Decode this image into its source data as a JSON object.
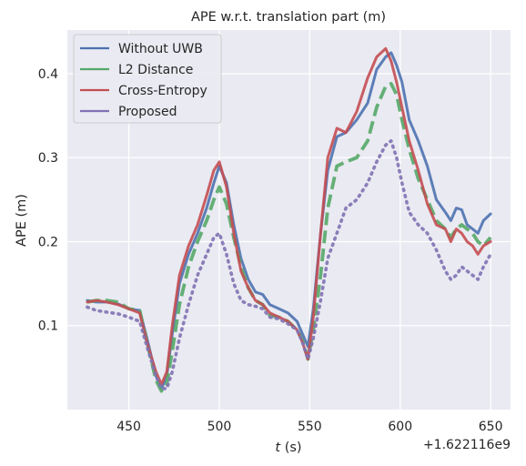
{
  "chart_data": {
    "type": "line",
    "title": "APE w.r.t. translation part (m)",
    "xlabel": "t (s)",
    "xlabel_italic_part": "t",
    "xlabel_rest": " (s)",
    "ylabel": "APE (m)",
    "x_offset_text": "+1.622116e9",
    "xlim": [
      416,
      661
    ],
    "ylim": [
      0.0,
      0.452
    ],
    "xticks": [
      450,
      500,
      550,
      600,
      650
    ],
    "xtick_labels": [
      "450",
      "500",
      "550",
      "600",
      "650"
    ],
    "yticks": [
      0.1,
      0.2,
      0.3,
      0.4
    ],
    "ytick_labels": [
      "0.1",
      "0.2",
      "0.3",
      "0.4"
    ],
    "grid": true,
    "legend_position": "upper-left",
    "background": "#eaeaf2",
    "series": [
      {
        "name": "Without UWB",
        "color": "#4c72b0",
        "style": "solid",
        "x": [
          427,
          432,
          438,
          444,
          450,
          456,
          460,
          465,
          468,
          471,
          474,
          478,
          483,
          488,
          493,
          497,
          500,
          504,
          508,
          512,
          516,
          520,
          524,
          528,
          533,
          538,
          543,
          546,
          549,
          552,
          556,
          560,
          565,
          570,
          576,
          582,
          587,
          592,
          595,
          598,
          601,
          605,
          610,
          615,
          620,
          625,
          628,
          631,
          634,
          637,
          640,
          643,
          646,
          650
        ],
        "y": [
          0.13,
          0.128,
          0.128,
          0.126,
          0.12,
          0.118,
          0.085,
          0.04,
          0.025,
          0.04,
          0.09,
          0.15,
          0.185,
          0.21,
          0.24,
          0.27,
          0.29,
          0.27,
          0.22,
          0.18,
          0.155,
          0.14,
          0.137,
          0.125,
          0.12,
          0.115,
          0.105,
          0.09,
          0.075,
          0.12,
          0.21,
          0.285,
          0.325,
          0.33,
          0.345,
          0.365,
          0.405,
          0.42,
          0.425,
          0.41,
          0.39,
          0.345,
          0.32,
          0.29,
          0.25,
          0.235,
          0.225,
          0.24,
          0.238,
          0.22,
          0.215,
          0.21,
          0.225,
          0.233
        ]
      },
      {
        "name": "L2 Distance",
        "color": "#55a868",
        "style": "dashed",
        "x": [
          427,
          432,
          438,
          444,
          450,
          456,
          460,
          465,
          468,
          471,
          474,
          478,
          483,
          488,
          493,
          497,
          500,
          504,
          508,
          512,
          516,
          520,
          524,
          528,
          533,
          538,
          543,
          546,
          549,
          552,
          556,
          560,
          565,
          570,
          576,
          582,
          587,
          592,
          595,
          598,
          601,
          605,
          610,
          615,
          620,
          625,
          628,
          631,
          634,
          637,
          640,
          643,
          646,
          650
        ],
        "y": [
          0.128,
          0.13,
          0.13,
          0.128,
          0.12,
          0.118,
          0.08,
          0.035,
          0.022,
          0.03,
          0.07,
          0.125,
          0.17,
          0.2,
          0.225,
          0.25,
          0.265,
          0.245,
          0.205,
          0.17,
          0.145,
          0.13,
          0.125,
          0.112,
          0.11,
          0.105,
          0.095,
          0.082,
          0.06,
          0.095,
          0.16,
          0.24,
          0.29,
          0.295,
          0.3,
          0.32,
          0.36,
          0.385,
          0.388,
          0.375,
          0.345,
          0.31,
          0.275,
          0.25,
          0.225,
          0.215,
          0.205,
          0.215,
          0.22,
          0.215,
          0.21,
          0.2,
          0.195,
          0.205
        ]
      },
      {
        "name": "Cross-Entropy",
        "color": "#c44e52",
        "style": "solid",
        "x": [
          427,
          432,
          438,
          444,
          450,
          456,
          460,
          465,
          468,
          471,
          474,
          478,
          483,
          488,
          493,
          497,
          500,
          504,
          508,
          512,
          516,
          520,
          524,
          528,
          533,
          538,
          543,
          546,
          549,
          552,
          556,
          560,
          565,
          570,
          576,
          582,
          587,
          592,
          595,
          598,
          601,
          605,
          610,
          615,
          620,
          625,
          628,
          631,
          634,
          637,
          640,
          643,
          646,
          650
        ],
        "y": [
          0.128,
          0.13,
          0.128,
          0.125,
          0.12,
          0.115,
          0.08,
          0.045,
          0.03,
          0.045,
          0.1,
          0.16,
          0.195,
          0.22,
          0.255,
          0.285,
          0.295,
          0.265,
          0.21,
          0.165,
          0.145,
          0.13,
          0.125,
          0.115,
          0.11,
          0.105,
          0.095,
          0.08,
          0.06,
          0.11,
          0.21,
          0.3,
          0.335,
          0.33,
          0.355,
          0.395,
          0.42,
          0.43,
          0.415,
          0.39,
          0.36,
          0.32,
          0.285,
          0.245,
          0.22,
          0.215,
          0.2,
          0.215,
          0.21,
          0.2,
          0.195,
          0.185,
          0.195,
          0.2
        ]
      },
      {
        "name": "Proposed",
        "color": "#8172b3",
        "style": "dotted",
        "x": [
          427,
          432,
          438,
          444,
          450,
          456,
          460,
          465,
          468,
          471,
          474,
          478,
          483,
          488,
          493,
          497,
          500,
          504,
          508,
          512,
          516,
          520,
          524,
          528,
          533,
          538,
          543,
          546,
          549,
          552,
          556,
          560,
          565,
          570,
          576,
          582,
          587,
          592,
          595,
          598,
          601,
          605,
          610,
          615,
          620,
          625,
          628,
          631,
          634,
          637,
          640,
          643,
          646,
          650
        ],
        "y": [
          0.122,
          0.118,
          0.116,
          0.114,
          0.11,
          0.105,
          0.075,
          0.04,
          0.025,
          0.025,
          0.045,
          0.085,
          0.125,
          0.16,
          0.185,
          0.205,
          0.21,
          0.185,
          0.15,
          0.13,
          0.125,
          0.123,
          0.12,
          0.11,
          0.108,
          0.102,
          0.095,
          0.08,
          0.06,
          0.085,
          0.13,
          0.18,
          0.21,
          0.24,
          0.25,
          0.27,
          0.295,
          0.315,
          0.32,
          0.3,
          0.27,
          0.235,
          0.22,
          0.21,
          0.19,
          0.165,
          0.155,
          0.16,
          0.17,
          0.165,
          0.16,
          0.155,
          0.17,
          0.185
        ]
      }
    ]
  }
}
